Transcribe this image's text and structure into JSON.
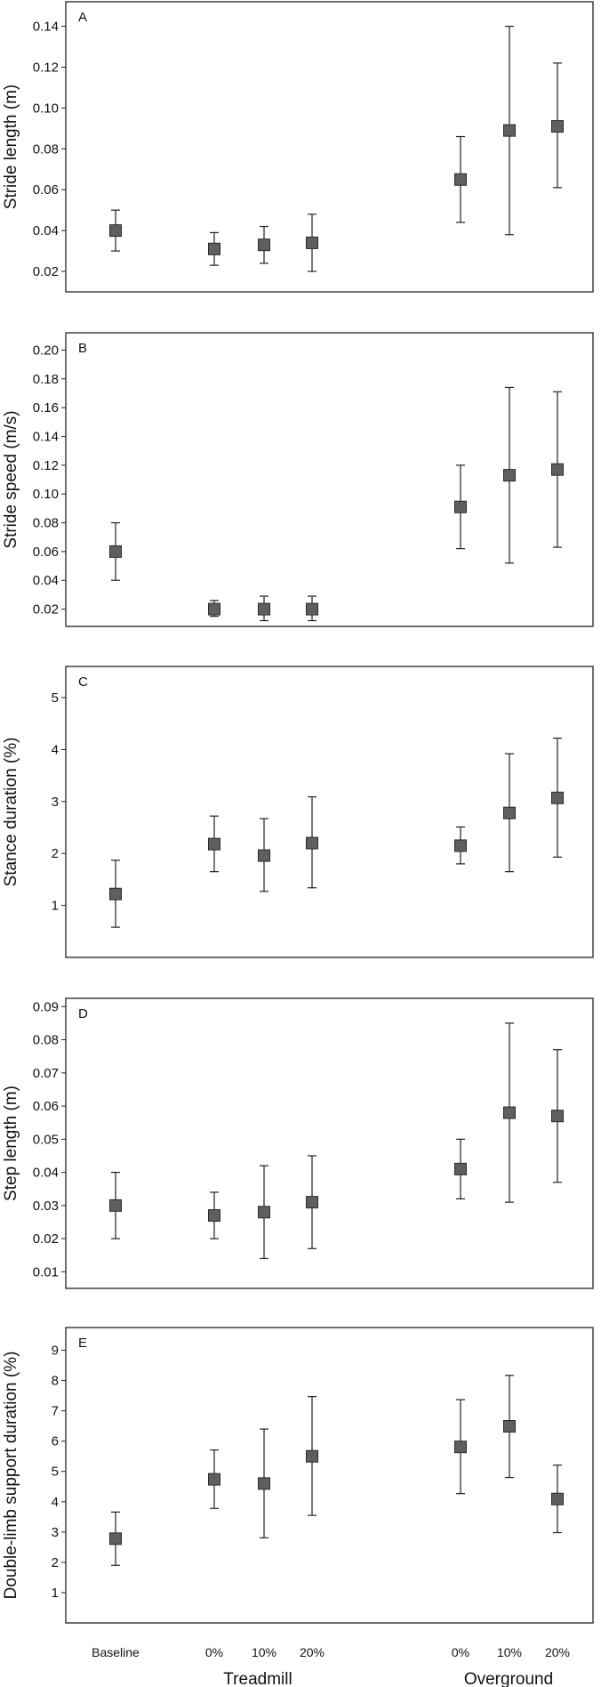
{
  "chart_data": [
    {
      "type": "scatter",
      "panel_letter": "A",
      "ylabel": "Stride length (m)",
      "ylim": [
        0.01,
        0.152
      ],
      "yticks": [
        0.02,
        0.04,
        0.06,
        0.08,
        0.1,
        0.12,
        0.14
      ],
      "yticklabels": [
        "0.02",
        "0.04",
        "0.06",
        "0.08",
        "0.10",
        "0.12",
        "0.14"
      ],
      "points": [
        {
          "mean": 0.04,
          "lo": 0.03,
          "hi": 0.05
        },
        {
          "mean": 0.031,
          "lo": 0.023,
          "hi": 0.039
        },
        {
          "mean": 0.033,
          "lo": 0.024,
          "hi": 0.042
        },
        {
          "mean": 0.034,
          "lo": 0.02,
          "hi": 0.048
        },
        {
          "mean": 0.065,
          "lo": 0.044,
          "hi": 0.086
        },
        {
          "mean": 0.089,
          "lo": 0.038,
          "hi": 0.14
        },
        {
          "mean": 0.091,
          "lo": 0.061,
          "hi": 0.122
        }
      ]
    },
    {
      "type": "scatter",
      "panel_letter": "B",
      "ylabel": "Stride speed (m/s)",
      "ylim": [
        0.008,
        0.212
      ],
      "yticks": [
        0.02,
        0.04,
        0.06,
        0.08,
        0.1,
        0.12,
        0.14,
        0.16,
        0.18,
        0.2
      ],
      "yticklabels": [
        "0.02",
        "0.04",
        "0.06",
        "0.08",
        "0.10",
        "0.12",
        "0.14",
        "0.16",
        "0.18",
        "0.20"
      ],
      "points": [
        {
          "mean": 0.06,
          "lo": 0.04,
          "hi": 0.08
        },
        {
          "mean": 0.02,
          "lo": 0.015,
          "hi": 0.026
        },
        {
          "mean": 0.02,
          "lo": 0.012,
          "hi": 0.029
        },
        {
          "mean": 0.02,
          "lo": 0.012,
          "hi": 0.029
        },
        {
          "mean": 0.091,
          "lo": 0.062,
          "hi": 0.12
        },
        {
          "mean": 0.113,
          "lo": 0.052,
          "hi": 0.174
        },
        {
          "mean": 0.117,
          "lo": 0.063,
          "hi": 0.171
        }
      ]
    },
    {
      "type": "scatter",
      "panel_letter": "C",
      "ylabel": "Stance duration (%)",
      "ylim": [
        0.0,
        5.6
      ],
      "yticks": [
        1,
        2,
        3,
        4,
        5
      ],
      "yticklabels": [
        "1",
        "2",
        "3",
        "4",
        "5"
      ],
      "points": [
        {
          "mean": 1.22,
          "lo": 0.58,
          "hi": 1.87
        },
        {
          "mean": 2.18,
          "lo": 1.65,
          "hi": 2.72
        },
        {
          "mean": 1.96,
          "lo": 1.27,
          "hi": 2.67
        },
        {
          "mean": 2.2,
          "lo": 1.34,
          "hi": 3.09
        },
        {
          "mean": 2.15,
          "lo": 1.8,
          "hi": 2.51
        },
        {
          "mean": 2.78,
          "lo": 1.65,
          "hi": 3.92
        },
        {
          "mean": 3.07,
          "lo": 1.93,
          "hi": 4.22
        }
      ]
    },
    {
      "type": "scatter",
      "panel_letter": "D",
      "ylabel": "Step length (m)",
      "ylim": [
        0.005,
        0.0925
      ],
      "yticks": [
        0.01,
        0.02,
        0.03,
        0.04,
        0.05,
        0.06,
        0.07,
        0.08,
        0.09
      ],
      "yticklabels": [
        "0.01",
        "0.02",
        "0.03",
        "0.04",
        "0.05",
        "0.06",
        "0.07",
        "0.08",
        "0.09"
      ],
      "points": [
        {
          "mean": 0.03,
          "lo": 0.02,
          "hi": 0.04
        },
        {
          "mean": 0.027,
          "lo": 0.02,
          "hi": 0.034
        },
        {
          "mean": 0.028,
          "lo": 0.014,
          "hi": 0.042
        },
        {
          "mean": 0.031,
          "lo": 0.017,
          "hi": 0.045
        },
        {
          "mean": 0.041,
          "lo": 0.032,
          "hi": 0.05
        },
        {
          "mean": 0.058,
          "lo": 0.031,
          "hi": 0.085
        },
        {
          "mean": 0.057,
          "lo": 0.037,
          "hi": 0.077
        }
      ]
    },
    {
      "type": "scatter",
      "panel_letter": "E",
      "ylabel": "Double-limb support duration (%)",
      "ylim": [
        0.0,
        9.75
      ],
      "yticks": [
        1,
        2,
        3,
        4,
        5,
        6,
        7,
        8,
        9
      ],
      "yticklabels": [
        "1",
        "2",
        "3",
        "4",
        "5",
        "6",
        "7",
        "8",
        "9"
      ],
      "points": [
        {
          "mean": 2.78,
          "lo": 1.9,
          "hi": 3.66
        },
        {
          "mean": 4.74,
          "lo": 3.78,
          "hi": 5.71
        },
        {
          "mean": 4.6,
          "lo": 2.81,
          "hi": 6.4
        },
        {
          "mean": 5.5,
          "lo": 3.55,
          "hi": 7.47
        },
        {
          "mean": 5.81,
          "lo": 4.27,
          "hi": 7.37
        },
        {
          "mean": 6.49,
          "lo": 4.8,
          "hi": 8.17
        },
        {
          "mean": 4.09,
          "lo": 2.98,
          "hi": 5.21
        }
      ]
    }
  ],
  "categories": [
    "Baseline",
    "0%",
    "10%",
    "20%",
    "0%",
    "10%",
    "20%"
  ],
  "groups": [
    "Treadmill",
    "Overground"
  ],
  "colors": {
    "marker_fill": "#5f5f5f",
    "marker_stroke": "#2a2a2a",
    "line": "#222222",
    "frame": "#222222"
  }
}
